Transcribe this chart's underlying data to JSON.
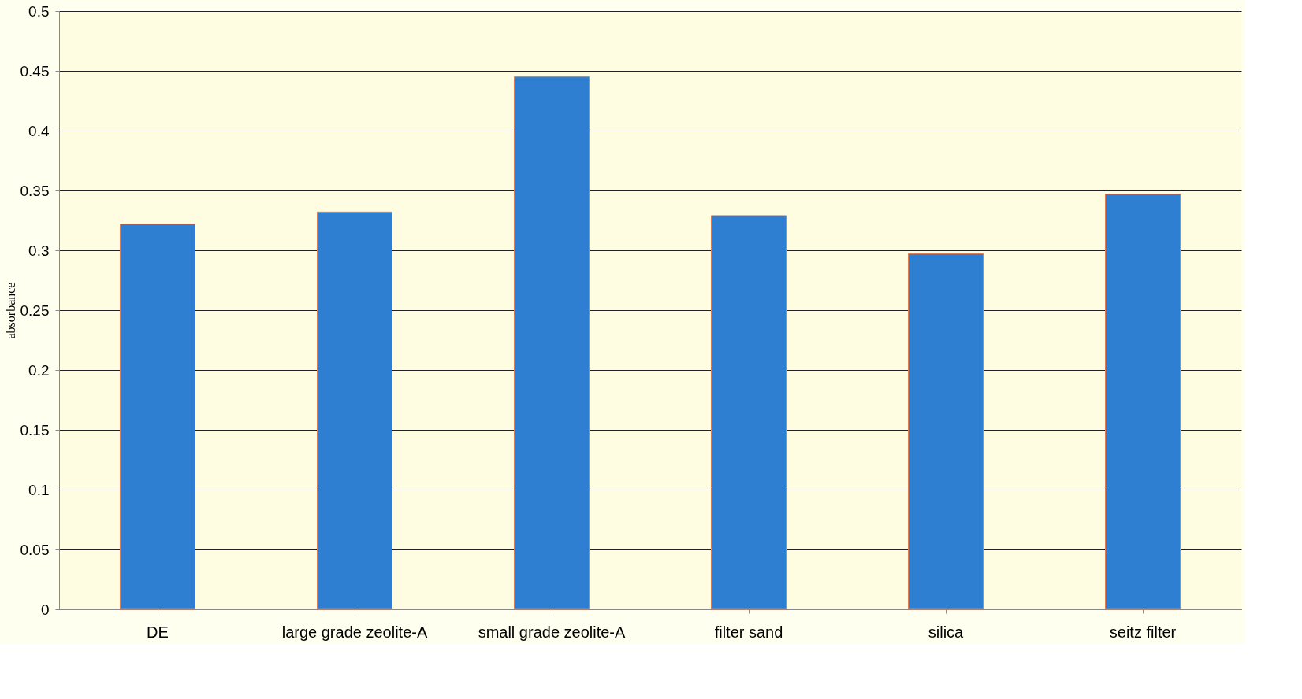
{
  "chart_data": {
    "type": "bar",
    "ylabel": "absorbance",
    "categories": [
      "DE",
      "large grade zeolite-A",
      "small grade zeolite-A",
      "filter sand",
      "silica",
      "seitz filter"
    ],
    "values": [
      0.322,
      0.332,
      0.445,
      0.329,
      0.297,
      0.347
    ],
    "color": "#2e7fd2",
    "ylim": [
      0,
      0.5
    ],
    "yticks": [
      0,
      0.05,
      0.1,
      0.15,
      0.2,
      0.25,
      0.3,
      0.35,
      0.4,
      0.45,
      0.5
    ],
    "grid": "y"
  }
}
